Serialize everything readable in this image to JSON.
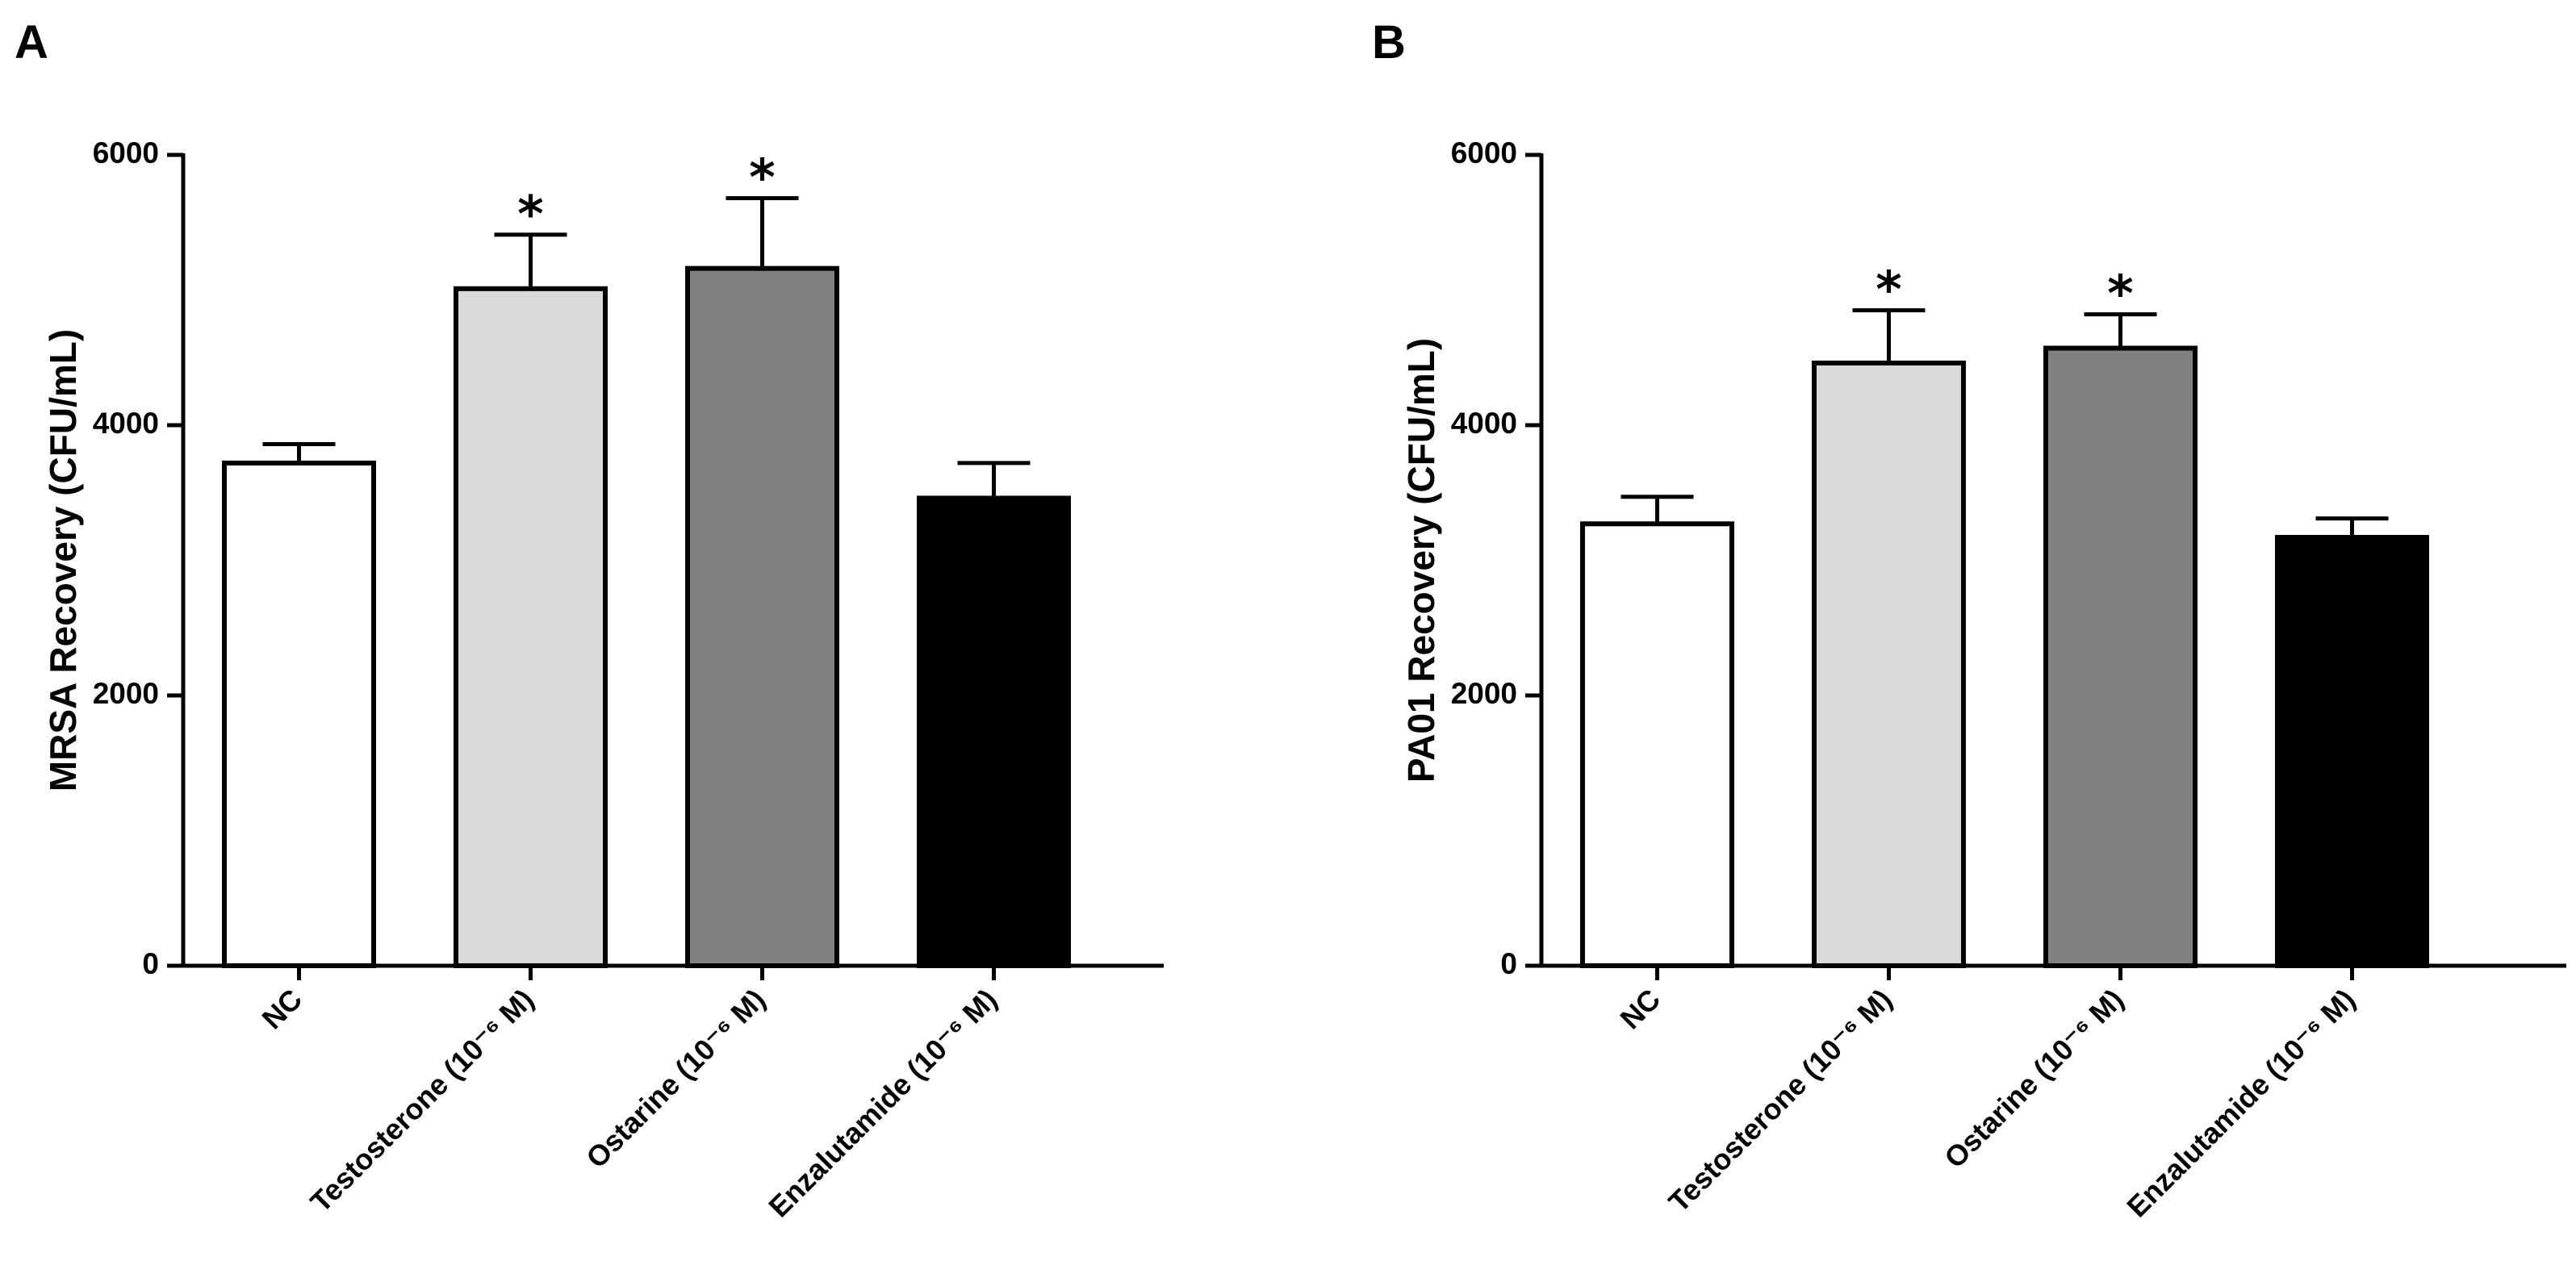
{
  "chart_data": [
    {
      "panel": "A",
      "type": "bar",
      "title": "",
      "xlabel": "",
      "ylabel": "MRSA Recovery (CFU/mL)",
      "ylim": [
        0,
        6000
      ],
      "yticks": [
        0,
        2000,
        4000,
        6000
      ],
      "categories": [
        "NC",
        "Testosterone (10⁻⁶ M)",
        "Ostarine (10⁻⁶ M)",
        "Enzalutamide (10⁻⁶ M)"
      ],
      "values": [
        3720,
        5010,
        5160,
        3460
      ],
      "errors": [
        140,
        400,
        520,
        260
      ],
      "significance": [
        "",
        "*",
        "*",
        ""
      ],
      "bar_colors": [
        "#ffffff",
        "#d9d9d9",
        "#808080",
        "#000000"
      ],
      "grid": false
    },
    {
      "panel": "B",
      "type": "bar",
      "title": "",
      "xlabel": "",
      "ylabel": "PA01 Recovery (CFU/mL)",
      "ylim": [
        0,
        6000
      ],
      "yticks": [
        0,
        2000,
        4000,
        6000
      ],
      "categories": [
        "NC",
        "Testosterone (10⁻⁶ M)",
        "Ostarine (10⁻⁶ M)",
        "Enzalutamide (10⁻⁶ M)"
      ],
      "values": [
        3270,
        4460,
        4570,
        3170
      ],
      "errors": [
        200,
        390,
        250,
        140
      ],
      "significance": [
        "",
        "*",
        "*",
        ""
      ],
      "bar_colors": [
        "#ffffff",
        "#d9d9d9",
        "#808080",
        "#000000"
      ],
      "grid": false
    }
  ]
}
